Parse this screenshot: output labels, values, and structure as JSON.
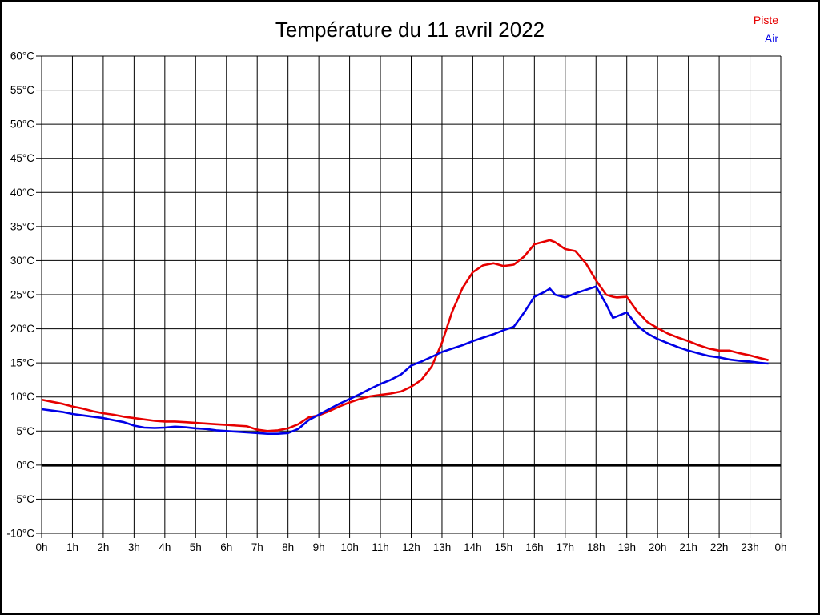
{
  "page_title": "Température du 11 avril 2022",
  "legend": {
    "piste_label": "Piste",
    "air_label": "Air"
  },
  "chart_data": {
    "type": "line",
    "title": "Température du 11 avril 2022",
    "xlabel": "",
    "ylabel": "",
    "x_unit": "h",
    "y_unit": "°C",
    "ylim": [
      -10,
      60
    ],
    "xlim_hours": [
      0,
      24
    ],
    "grid": true,
    "zero_line_emphasized": true,
    "legend_position": "top-right",
    "axis_color": "#000000",
    "grid_color": "#000000",
    "y_tick_values": [
      60,
      55,
      50,
      45,
      40,
      35,
      30,
      25,
      20,
      15,
      10,
      5,
      0,
      -5,
      -10
    ],
    "y_tick_labels": [
      "60°C",
      "55°C",
      "50°C",
      "45°C",
      "40°C",
      "35°C",
      "30°C",
      "25°C",
      "20°C",
      "15°C",
      "10°C",
      "5°C",
      "0°C",
      "-5°C",
      "-10°C"
    ],
    "x_tick_hours": [
      0,
      1,
      2,
      3,
      4,
      5,
      6,
      7,
      8,
      9,
      10,
      11,
      12,
      13,
      14,
      15,
      16,
      17,
      18,
      19,
      20,
      21,
      22,
      23,
      24
    ],
    "x_tick_labels": [
      "0h",
      "1h",
      "2h",
      "3h",
      "4h",
      "5h",
      "6h",
      "7h",
      "8h",
      "9h",
      "10h",
      "11h",
      "12h",
      "13h",
      "14h",
      "15h",
      "16h",
      "17h",
      "18h",
      "19h",
      "20h",
      "21h",
      "22h",
      "23h",
      "0h"
    ],
    "x_hours": [
      0,
      0.33,
      0.67,
      1,
      1.33,
      1.67,
      2,
      2.33,
      2.67,
      3,
      3.33,
      3.67,
      4,
      4.33,
      4.67,
      5,
      5.33,
      5.67,
      6,
      6.33,
      6.67,
      7,
      7.33,
      7.67,
      8,
      8.33,
      8.67,
      9,
      9.33,
      9.67,
      10,
      10.33,
      10.67,
      11,
      11.33,
      11.67,
      12,
      12.33,
      12.67,
      13,
      13.33,
      13.67,
      14,
      14.33,
      14.67,
      15,
      15.33,
      15.67,
      16,
      16.33,
      16.5,
      16.67,
      17,
      17.33,
      17.67,
      18,
      18.33,
      18.55,
      18.67,
      19,
      19.33,
      19.67,
      20,
      20.33,
      20.67,
      21,
      21.33,
      21.67,
      22,
      22.33,
      22.67,
      23,
      23.33,
      23.6
    ],
    "series": [
      {
        "name": "Piste",
        "color": "#e60000",
        "values": [
          9.6,
          9.3,
          9.0,
          8.6,
          8.3,
          7.9,
          7.6,
          7.4,
          7.1,
          6.9,
          6.7,
          6.5,
          6.4,
          6.4,
          6.3,
          6.2,
          6.1,
          6.0,
          5.9,
          5.8,
          5.7,
          5.2,
          5.0,
          5.1,
          5.4,
          6.0,
          7.0,
          7.3,
          7.9,
          8.6,
          9.2,
          9.7,
          10.1,
          10.3,
          10.5,
          10.8,
          11.5,
          12.5,
          14.5,
          18.0,
          22.5,
          26.0,
          28.3,
          29.3,
          29.6,
          29.2,
          29.4,
          30.6,
          32.4,
          32.8,
          33.0,
          32.7,
          31.7,
          31.4,
          29.6,
          27.1,
          25.0,
          24.7,
          24.6,
          24.7,
          22.6,
          21.0,
          20.1,
          19.3,
          18.7,
          18.2,
          17.6,
          17.1,
          16.8,
          16.8,
          16.4,
          16.1,
          15.7,
          15.4
        ]
      },
      {
        "name": "Air",
        "color": "#0000e6",
        "values": [
          8.2,
          8.0,
          7.8,
          7.5,
          7.3,
          7.1,
          6.9,
          6.6,
          6.3,
          5.8,
          5.5,
          5.45,
          5.5,
          5.65,
          5.55,
          5.4,
          5.3,
          5.1,
          5.0,
          4.9,
          4.8,
          4.7,
          4.6,
          4.6,
          4.7,
          5.3,
          6.6,
          7.4,
          8.2,
          9.0,
          9.7,
          10.4,
          11.2,
          11.9,
          12.5,
          13.3,
          14.6,
          15.2,
          15.9,
          16.6,
          17.1,
          17.6,
          18.2,
          18.7,
          19.2,
          19.8,
          20.3,
          22.4,
          24.7,
          25.4,
          25.9,
          25.0,
          24.6,
          25.2,
          25.7,
          26.2,
          23.6,
          21.6,
          21.8,
          22.4,
          20.5,
          19.3,
          18.5,
          17.9,
          17.3,
          16.8,
          16.4,
          16.0,
          15.8,
          15.5,
          15.3,
          15.2,
          15.0,
          14.9
        ]
      }
    ]
  }
}
